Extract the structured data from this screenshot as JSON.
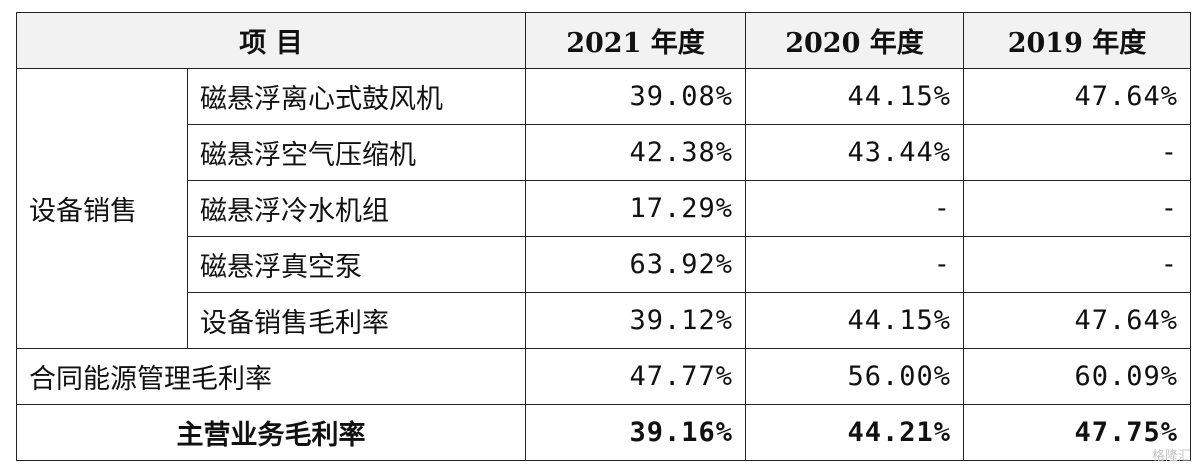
{
  "table": {
    "headers": {
      "item": "项 目",
      "y2021": "2021 年度",
      "y2020": "2020 年度",
      "y2019": "2019 年度"
    },
    "group_label": "设备销售",
    "group_rows": [
      {
        "name": "磁悬浮离心式鼓风机",
        "v2021": "39.08%",
        "v2020": "44.15%",
        "v2019": "47.64%"
      },
      {
        "name": "磁悬浮空气压缩机",
        "v2021": "42.38%",
        "v2020": "43.44%",
        "v2019": "-"
      },
      {
        "name": "磁悬浮冷水机组",
        "v2021": "17.29%",
        "v2020": "-",
        "v2019": "-"
      },
      {
        "name": "磁悬浮真空泵",
        "v2021": "63.92%",
        "v2020": "-",
        "v2019": "-"
      },
      {
        "name": "设备销售毛利率",
        "v2021": "39.12%",
        "v2020": "44.15%",
        "v2019": "47.64%"
      }
    ],
    "contract_row": {
      "name": "合同能源管理毛利率",
      "v2021": "47.77%",
      "v2020": "56.00%",
      "v2019": "60.09%"
    },
    "total_row": {
      "name": "主营业务毛利率",
      "v2021": "39.16%",
      "v2020": "44.21%",
      "v2019": "47.75%"
    }
  },
  "watermark": "格隆汇"
}
